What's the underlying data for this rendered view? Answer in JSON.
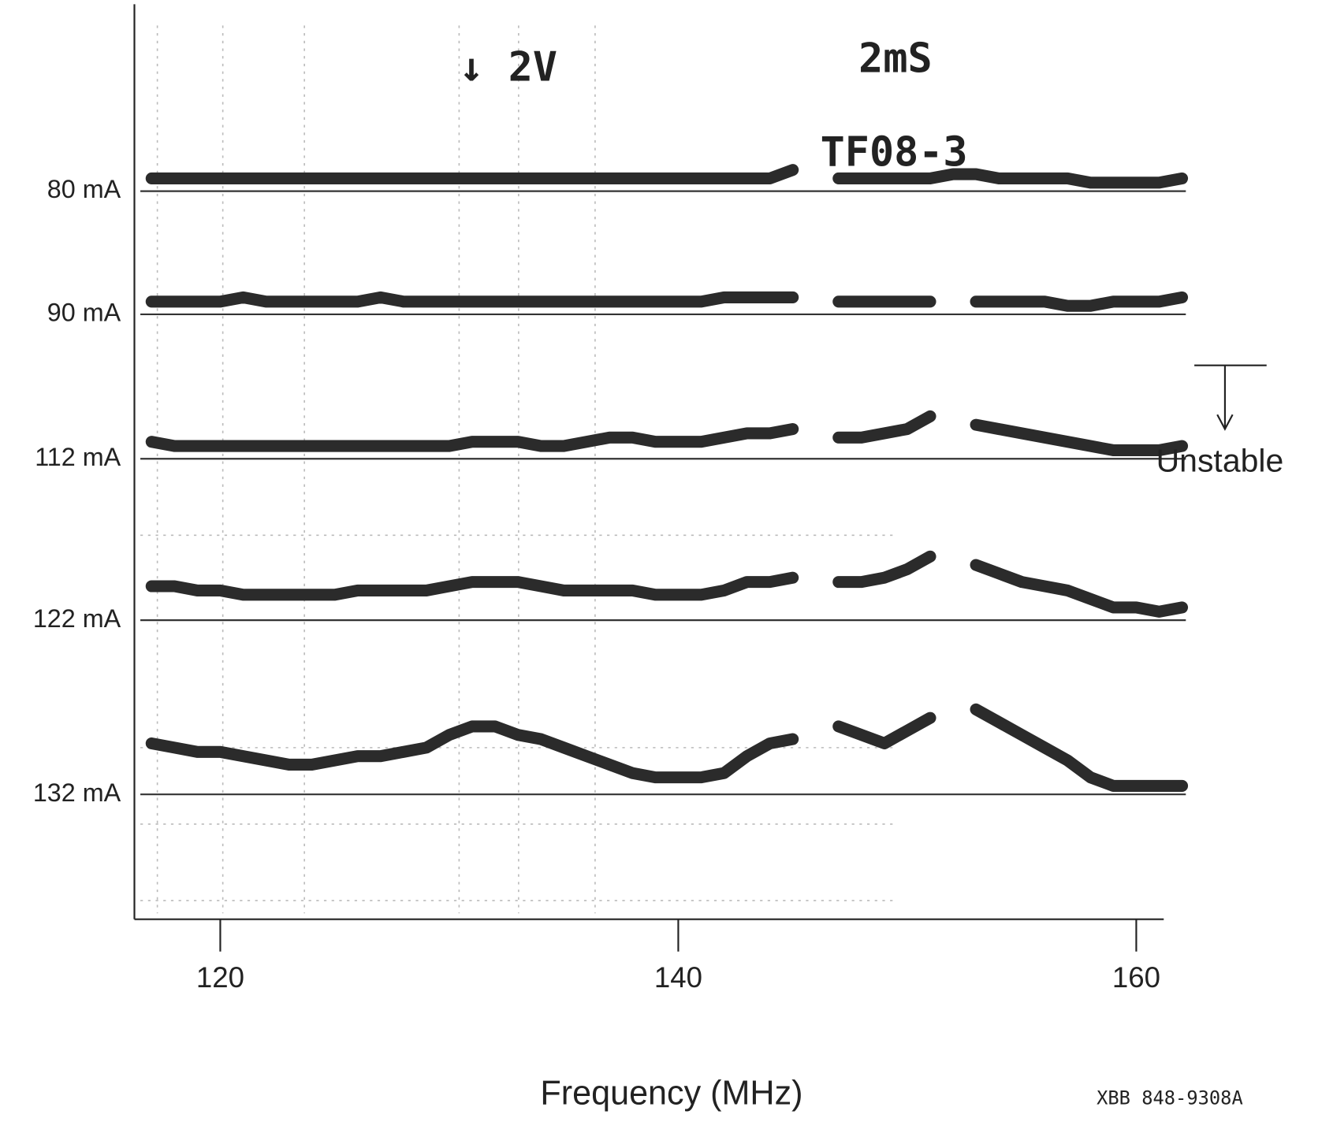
{
  "chart_data": {
    "type": "line",
    "xlabel": "Frequency (MHz)",
    "xlim": [
      116.25,
      161.2
    ],
    "xticks": [
      120,
      140,
      160
    ],
    "x": [
      117,
      118,
      119,
      120,
      121,
      122,
      123,
      124,
      125,
      126,
      127,
      128,
      129,
      130,
      131,
      132,
      133,
      134,
      135,
      136,
      137,
      138,
      139,
      140,
      141,
      142,
      143,
      144,
      145,
      146,
      147,
      148,
      149,
      150,
      151,
      152,
      153,
      154,
      155,
      156,
      157,
      158,
      159,
      160,
      161,
      162
    ],
    "series": [
      {
        "name": "80 mA",
        "color": "#2b2b2b",
        "values": [
          1.5,
          1.5,
          1.5,
          1.5,
          1.5,
          1.5,
          1.5,
          1.5,
          1.5,
          1.5,
          1.5,
          1.5,
          1.5,
          1.5,
          1.5,
          1.5,
          1.5,
          1.5,
          1.5,
          1.5,
          1.5,
          1.5,
          1.5,
          1.5,
          1.5,
          1.5,
          1.5,
          1.5,
          2.5,
          null,
          1.5,
          1.5,
          1.5,
          1.5,
          1.5,
          2,
          2,
          1.5,
          1.5,
          1.5,
          1.5,
          1,
          1,
          1,
          1,
          1.5
        ]
      },
      {
        "name": "90 mA",
        "color": "#2b2b2b",
        "values": [
          1.5,
          1.5,
          1.5,
          1.5,
          2,
          1.5,
          1.5,
          1.5,
          1.5,
          1.5,
          2,
          1.5,
          1.5,
          1.5,
          1.5,
          1.5,
          1.5,
          1.5,
          1.5,
          1.5,
          1.5,
          1.5,
          1.5,
          1.5,
          1.5,
          2,
          2,
          2,
          2,
          null,
          1.5,
          1.5,
          1.5,
          1.5,
          1.5,
          null,
          1.5,
          1.5,
          1.5,
          1.5,
          1,
          1,
          1.5,
          1.5,
          1.5,
          2
        ]
      },
      {
        "name": "112 mA",
        "color": "#2b2b2b",
        "values": [
          2,
          1.5,
          1.5,
          1.5,
          1.5,
          1.5,
          1.5,
          1.5,
          1.5,
          1.5,
          1.5,
          1.5,
          1.5,
          1.5,
          2,
          2,
          2,
          1.5,
          1.5,
          2,
          2.5,
          2.5,
          2,
          2,
          2,
          2.5,
          3,
          3,
          3.5,
          null,
          2.5,
          2.5,
          3,
          3.5,
          5,
          null,
          4,
          3.5,
          3,
          2.5,
          2,
          1.5,
          1,
          1,
          1,
          1.5
        ]
      },
      {
        "name": "122 mA",
        "color": "#2b2b2b",
        "values": [
          4,
          4,
          3.5,
          3.5,
          3,
          3,
          3,
          3,
          3,
          3.5,
          3.5,
          3.5,
          3.5,
          4,
          4.5,
          4.5,
          4.5,
          4,
          3.5,
          3.5,
          3.5,
          3.5,
          3,
          3,
          3,
          3.5,
          4.5,
          4.5,
          5,
          null,
          4.5,
          4.5,
          5,
          6,
          7.5,
          null,
          6.5,
          5.5,
          4.5,
          4,
          3.5,
          2.5,
          1.5,
          1.5,
          1,
          1.5
        ]
      },
      {
        "name": "132 mA",
        "color": "#2b2b2b",
        "values": [
          6,
          5.5,
          5,
          5,
          4.5,
          4,
          3.5,
          3.5,
          4,
          4.5,
          4.5,
          5,
          5.5,
          7,
          8,
          8,
          7,
          6.5,
          5.5,
          4.5,
          3.5,
          2.5,
          2,
          2,
          2,
          2.5,
          4.5,
          6,
          6.5,
          null,
          8,
          7,
          6,
          7.5,
          9,
          null,
          10,
          8.5,
          7,
          5.5,
          4,
          2,
          1,
          1,
          1,
          1
        ]
      }
    ],
    "annotations": [
      "↓ 2V",
      "2mS",
      "TF08-3",
      "Unstable",
      "XBB 848-9308A"
    ]
  }
}
